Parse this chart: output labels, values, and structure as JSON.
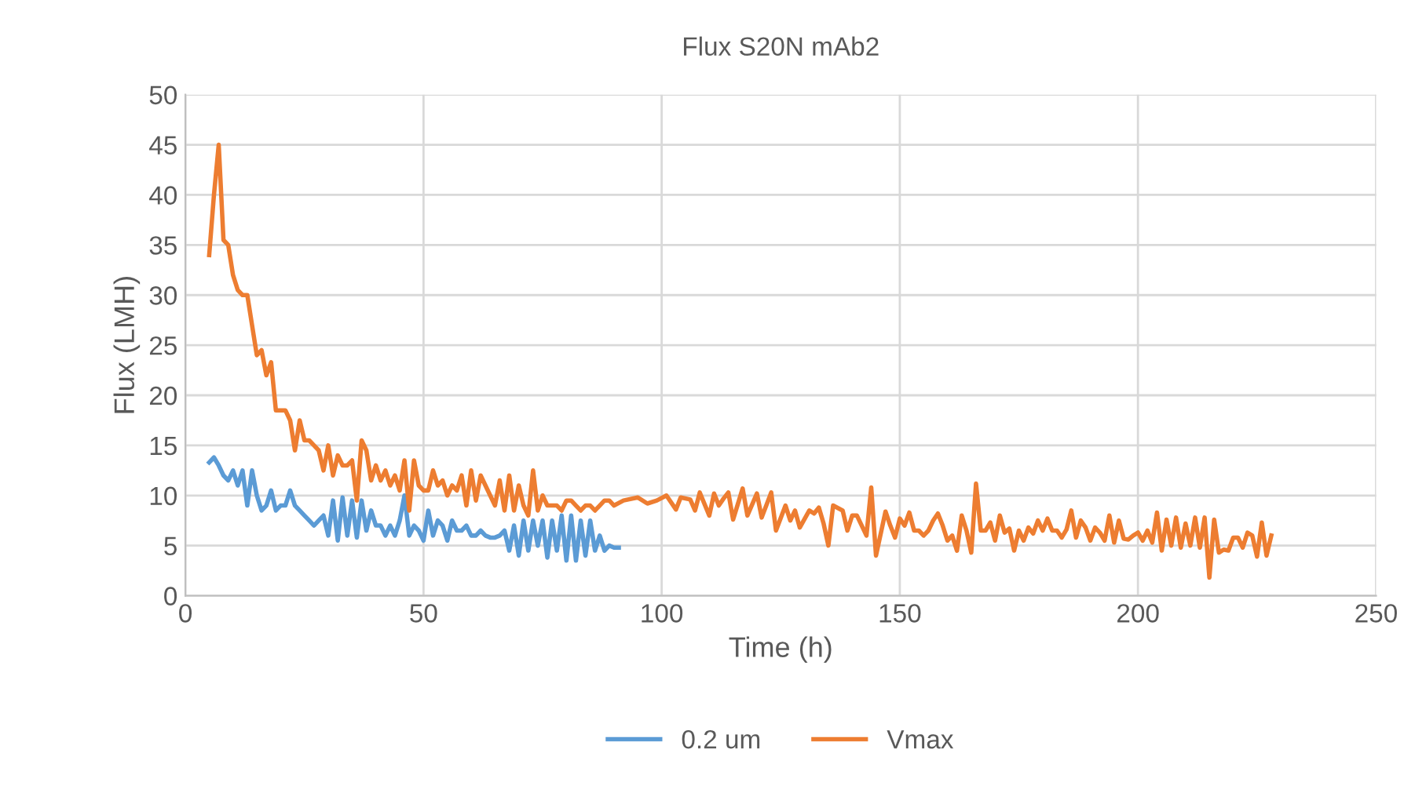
{
  "chart_data": {
    "type": "line",
    "title": "Flux S20N mAb2",
    "xlabel": "Time (h)",
    "ylabel": "Flux (LMH)",
    "xlim": [
      0,
      250
    ],
    "xticks": [
      0,
      50,
      100,
      150,
      200,
      250
    ],
    "ylim": [
      0,
      50
    ],
    "yticks": [
      0,
      5,
      10,
      15,
      20,
      25,
      30,
      35,
      40,
      45,
      50
    ],
    "grid": true,
    "legend": "bottom",
    "marker": "none",
    "line_style": "solid",
    "series": [
      {
        "name": "0.2 um",
        "color": "#5b9bd5",
        "x": [
          5,
          6,
          7,
          8,
          9,
          10,
          11,
          12,
          13,
          14,
          15,
          16,
          17,
          18,
          19,
          20,
          21,
          22,
          23,
          24,
          25,
          26,
          27,
          28,
          29,
          30,
          31,
          32,
          33,
          34,
          35,
          36,
          37,
          38,
          39,
          40,
          41,
          42,
          43,
          44,
          45,
          46,
          47,
          48,
          49,
          50,
          51,
          52,
          53,
          54,
          55,
          56,
          57,
          58,
          59,
          60,
          61,
          62,
          63,
          64,
          65,
          66,
          67,
          68,
          69,
          70,
          71,
          72,
          73,
          74,
          75,
          76,
          77,
          78,
          79,
          80,
          81,
          82,
          83,
          84,
          85,
          86,
          87,
          88,
          89,
          90,
          91
        ],
        "values": [
          13.3,
          13.8,
          13,
          12,
          11.5,
          12.5,
          11,
          12.5,
          9,
          12.5,
          10,
          8.5,
          9,
          10.5,
          8.5,
          9,
          9,
          10.5,
          9,
          8.5,
          8,
          7.5,
          7,
          7.5,
          8,
          6,
          9.5,
          5.5,
          9.8,
          6,
          9.5,
          5.8,
          9.5,
          6.5,
          8.5,
          7,
          7,
          6,
          7,
          6,
          7.5,
          10,
          6,
          7,
          6.5,
          5.5,
          8.5,
          6,
          7.5,
          7,
          5.5,
          7.5,
          6.5,
          6.5,
          7,
          6,
          6,
          6.5,
          6,
          5.8,
          5.8,
          6,
          6.5,
          4.5,
          7,
          4,
          7.5,
          4.5,
          7.5,
          5,
          7.5,
          3.8,
          7.5,
          4.5,
          8,
          3.5,
          8,
          3.5,
          7.5,
          4,
          7.5,
          4.5,
          6,
          4.5,
          5,
          4.8,
          4.8
        ]
      },
      {
        "name": "Vmax",
        "color": "#ed7d31",
        "x": [
          5,
          6,
          7,
          8,
          9,
          10,
          11,
          12,
          13,
          14,
          15,
          16,
          17,
          18,
          19,
          20,
          21,
          22,
          23,
          24,
          25,
          26,
          27,
          28,
          29,
          30,
          31,
          32,
          33,
          34,
          35,
          36,
          37,
          38,
          39,
          40,
          41,
          42,
          43,
          44,
          45,
          46,
          47,
          48,
          49,
          50,
          51,
          52,
          53,
          54,
          55,
          56,
          57,
          58,
          59,
          60,
          61,
          62,
          63,
          64,
          65,
          66,
          67,
          68,
          69,
          70,
          71,
          72,
          73,
          74,
          75,
          76,
          77,
          78,
          79,
          80,
          81,
          82,
          83,
          84,
          85,
          86,
          87,
          88,
          89,
          90,
          92,
          95,
          97,
          99,
          101,
          103,
          104,
          106,
          107,
          108,
          110,
          111,
          112,
          113,
          114,
          115,
          117,
          118,
          120,
          121,
          123,
          124,
          126,
          127,
          128,
          129,
          131,
          132,
          133,
          134,
          135,
          136,
          138,
          139,
          140,
          141,
          143,
          144,
          145,
          147,
          148,
          149,
          150,
          151,
          152,
          153,
          154,
          155,
          156,
          157,
          158,
          159,
          160,
          161,
          162,
          163,
          164,
          165,
          166,
          167,
          168,
          169,
          170,
          171,
          172,
          173,
          174,
          175,
          176,
          177,
          178,
          179,
          180,
          181,
          182,
          183,
          184,
          185,
          186,
          187,
          188,
          189,
          190,
          191,
          192,
          193,
          194,
          195,
          196,
          197,
          198,
          199,
          200,
          201,
          202,
          203,
          204,
          205,
          206,
          207,
          208,
          209,
          210,
          211,
          212,
          213,
          214,
          215,
          216,
          217,
          218,
          219,
          220,
          221,
          222,
          223,
          224,
          225,
          226,
          227,
          228
        ],
        "values": [
          34,
          40,
          45,
          35.5,
          35,
          32,
          30.5,
          30,
          30,
          27,
          24,
          24.5,
          22,
          23.3,
          18.5,
          18.5,
          18.5,
          17.5,
          14.5,
          17.5,
          15.5,
          15.5,
          15,
          14.5,
          12.5,
          15,
          12,
          14,
          13,
          13,
          13.5,
          9.5,
          15.5,
          14.5,
          11.5,
          13,
          11.5,
          12.5,
          11,
          12,
          10.5,
          13.5,
          8.5,
          13.5,
          11,
          10.5,
          10.5,
          12.5,
          11,
          11.5,
          10,
          11,
          10.5,
          12,
          9,
          12.5,
          9.5,
          12,
          11,
          10,
          9,
          11.5,
          8.5,
          12,
          8.5,
          11,
          9,
          8,
          12.5,
          8.5,
          10,
          9,
          9,
          9,
          8.5,
          9.5,
          9.5,
          9,
          8.5,
          9,
          9,
          8.5,
          9,
          9.5,
          9.5,
          9,
          9.5,
          9.8,
          9.2,
          9.5,
          10,
          8.6,
          9.8,
          9.6,
          8.5,
          10.3,
          8,
          10.2,
          9,
          9.7,
          10.3,
          7.6,
          10.7,
          8,
          10.2,
          7.8,
          10.3,
          6.5,
          9,
          7.5,
          8.5,
          6.8,
          8.5,
          8.2,
          8.8,
          7.2,
          5,
          9,
          8.5,
          6.5,
          8,
          8,
          6,
          10.8,
          4,
          8.4,
          7,
          5.8,
          7.7,
          7,
          8.3,
          6.5,
          6.5,
          6,
          6.5,
          7.5,
          8.2,
          7,
          5.5,
          6,
          4.5,
          8,
          6.5,
          4.3,
          11.2,
          6.5,
          6.5,
          7.3,
          5.5,
          8,
          6.3,
          6.7,
          4.5,
          6.5,
          5.5,
          6.8,
          6.2,
          7.5,
          6.5,
          7.7,
          6.5,
          6.5,
          5.8,
          6.6,
          8.5,
          5.8,
          7.5,
          6.8,
          5.5,
          6.8,
          6.3,
          5.5,
          8,
          5.3,
          7.5,
          5.7,
          5.6,
          6,
          6.3,
          5.5,
          6.5,
          5.3,
          8.3,
          4.5,
          7.6,
          5,
          7.8,
          4.8,
          7.2,
          5,
          7.8,
          4.8,
          7.8,
          1.8,
          7.6,
          4.3,
          4.6,
          4.5,
          5.8,
          5.8,
          4.8,
          6.3,
          6,
          3.9,
          7.3,
          4,
          6
        ]
      }
    ]
  }
}
